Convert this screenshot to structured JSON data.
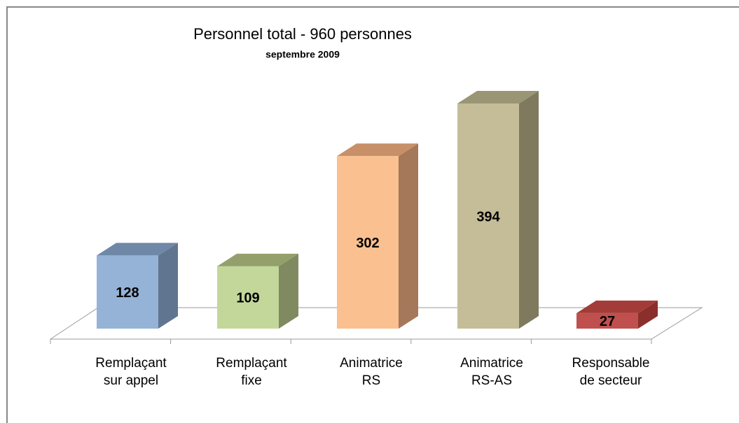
{
  "chart_data": {
    "type": "bar3d",
    "title": "Personnel total - 960 personnes",
    "subtitle": "septembre 2009",
    "categories": [
      "Remplaçant sur appel",
      "Remplaçant fixe",
      "Animatrice RS",
      "Animatrice RS-AS",
      "Responsable de secteur"
    ],
    "values": [
      128,
      109,
      302,
      394,
      27
    ],
    "colors": [
      "#95b3d7",
      "#c4d79b",
      "#fac090",
      "#c4bd97",
      "#c0504d"
    ],
    "side_colors": [
      "#60758f",
      "#7f8a60",
      "#a5785a",
      "#7f7a5e",
      "#8b2f2c"
    ],
    "top_colors": [
      "#6f88a8",
      "#93a06c",
      "#c89068",
      "#9a9575",
      "#a33c39"
    ]
  }
}
